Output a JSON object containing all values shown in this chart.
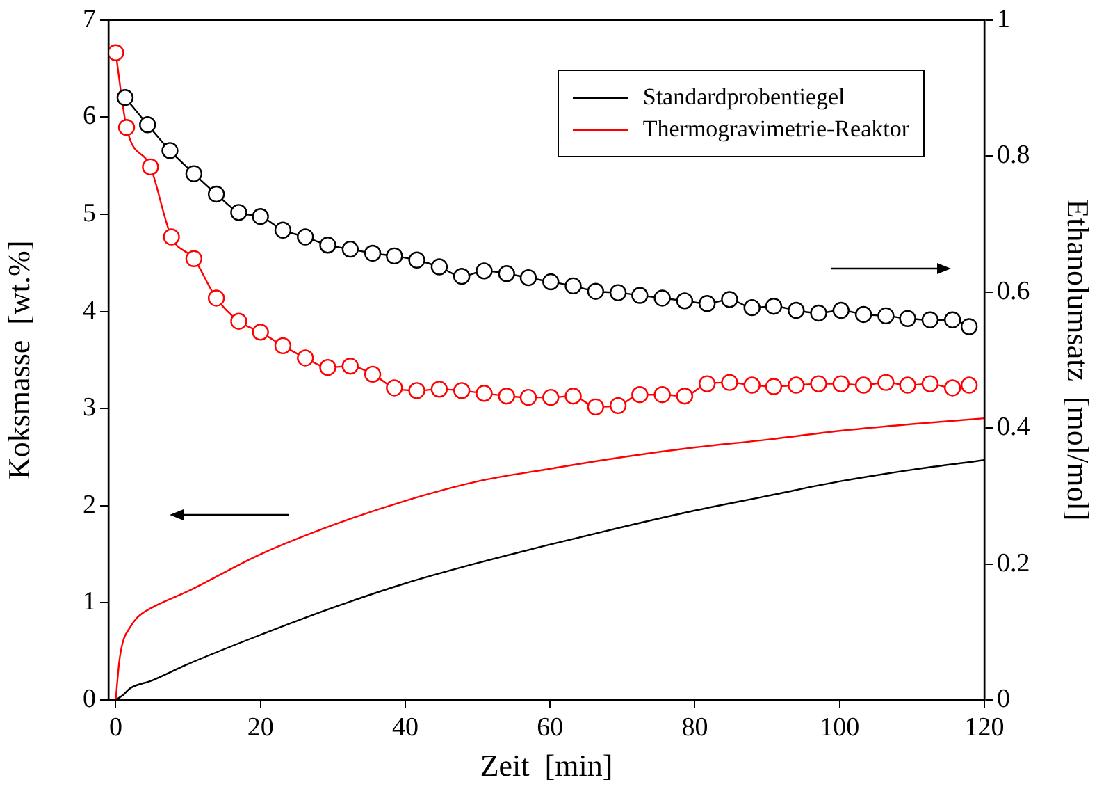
{
  "chart_data": {
    "type": "line",
    "xlabel": "Zeit  [min]",
    "ylabel": "Koksmasse  [wt.%]",
    "y2label": "Ethanolumsatz  [mol/mol]",
    "xlim": [
      -1,
      120
    ],
    "xticks": [
      0,
      20,
      40,
      60,
      80,
      100,
      120
    ],
    "ylim": [
      0,
      7
    ],
    "yticks": [
      0,
      1,
      2,
      3,
      4,
      5,
      6,
      7
    ],
    "y2lim": [
      0,
      1
    ],
    "y2ticks": [
      0,
      0.2,
      0.4,
      0.6,
      0.8,
      1
    ],
    "grid": false,
    "legend": "top right",
    "line_style": "solid",
    "series": [
      {
        "name": "Standardprobentiegel",
        "color": "#000000",
        "marker": "none",
        "x": [
          0,
          1,
          2,
          5,
          10,
          20,
          30,
          40,
          50,
          60,
          70,
          80,
          90,
          100,
          110,
          120
        ],
        "values": [
          0,
          0.05,
          0.12,
          0.2,
          0.37,
          0.67,
          0.95,
          1.2,
          1.41,
          1.6,
          1.78,
          1.95,
          2.1,
          2.25,
          2.37,
          2.47
        ]
      },
      {
        "name": "Thermogravimetrie-Reaktor",
        "color": "#ff0000",
        "marker": "none",
        "x": [
          0,
          0.5,
          1,
          2,
          3,
          5,
          10,
          20,
          30,
          40,
          50,
          60,
          70,
          80,
          90,
          100,
          110,
          120
        ],
        "values": [
          0,
          0.4,
          0.6,
          0.75,
          0.85,
          0.95,
          1.12,
          1.5,
          1.8,
          2.05,
          2.25,
          2.38,
          2.5,
          2.6,
          2.68,
          2.77,
          2.84,
          2.9
        ]
      },
      {
        "color": "#000000",
        "marker": "circle",
        "axis": "y2",
        "x": [
          1.3,
          4.4,
          7.5,
          10.8,
          13.9,
          17,
          20,
          23.1,
          26.2,
          29.3,
          32.4,
          35.5,
          38.5,
          41.6,
          44.7,
          47.8,
          50.9,
          54,
          57,
          60.1,
          63.2,
          66.3,
          69.4,
          72.4,
          75.5,
          78.6,
          81.7,
          84.8,
          87.9,
          90.9,
          94,
          97.1,
          100.2,
          103.3,
          106.4,
          109.4,
          112.5,
          115.6,
          117.9
        ],
        "values": [
          0.886,
          0.846,
          0.808,
          0.774,
          0.744,
          0.717,
          0.711,
          0.691,
          0.681,
          0.669,
          0.663,
          0.657,
          0.653,
          0.647,
          0.637,
          0.623,
          0.631,
          0.627,
          0.621,
          0.615,
          0.609,
          0.601,
          0.599,
          0.595,
          0.591,
          0.587,
          0.583,
          0.589,
          0.577,
          0.579,
          0.573,
          0.569,
          0.573,
          0.567,
          0.565,
          0.561,
          0.559,
          0.559,
          0.549
        ]
      },
      {
        "color": "#ff0000",
        "marker": "circle",
        "axis": "y2",
        "x": [
          0,
          1.5,
          4.8,
          7.7,
          10.8,
          13.9,
          17,
          20,
          23.1,
          26.2,
          29.3,
          32.4,
          35.5,
          38.5,
          41.6,
          44.7,
          47.8,
          50.9,
          54,
          57,
          60.1,
          63.2,
          66.3,
          69.4,
          72.4,
          75.5,
          78.6,
          81.7,
          84.8,
          87.9,
          90.9,
          94,
          97.1,
          100.2,
          103.3,
          106.4,
          109.4,
          112.5,
          115.6,
          117.9
        ],
        "values": [
          0.952,
          0.842,
          0.784,
          0.681,
          0.649,
          0.591,
          0.557,
          0.541,
          0.521,
          0.503,
          0.489,
          0.491,
          0.479,
          0.459,
          0.455,
          0.457,
          0.455,
          0.451,
          0.447,
          0.445,
          0.445,
          0.447,
          0.431,
          0.433,
          0.449,
          0.449,
          0.447,
          0.465,
          0.467,
          0.463,
          0.461,
          0.463,
          0.465,
          0.465,
          0.463,
          0.467,
          0.463,
          0.465,
          0.459,
          0.463
        ]
      }
    ]
  }
}
